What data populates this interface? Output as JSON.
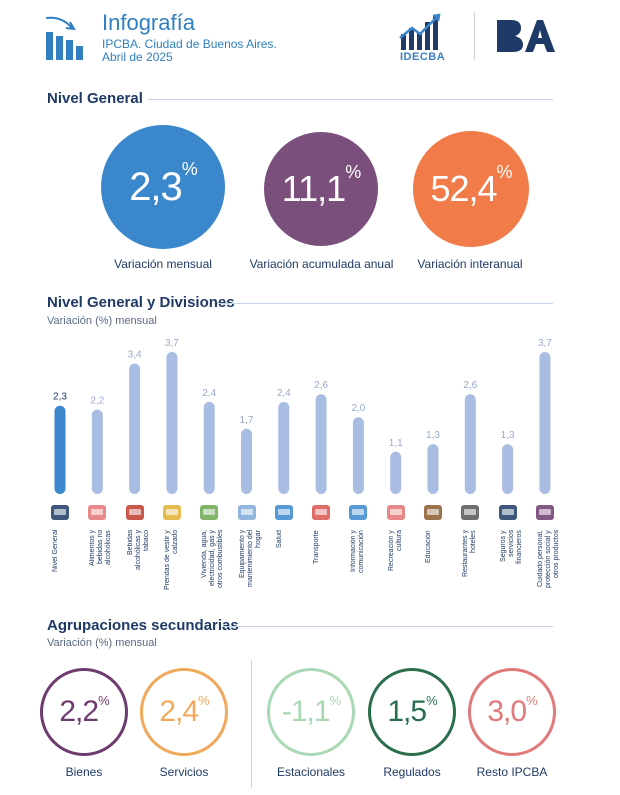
{
  "header": {
    "title": "Infografía",
    "subtitle_line1": "IPCBA. Ciudad de Buenos Aires.",
    "subtitle_line2": "Abril de 2025",
    "idec_label": "IDECBA"
  },
  "nivel_general": {
    "title": "Nivel General",
    "cards": [
      {
        "value": "2,3",
        "unit": "%",
        "label": "Variación mensual",
        "color": "#3a87cc"
      },
      {
        "value": "11,1",
        "unit": "%",
        "label": "Variación acumulada anual",
        "color": "#7a4f7c"
      },
      {
        "value": "52,4",
        "unit": "%",
        "label": "Variación interanual",
        "color": "#f27b4a"
      }
    ]
  },
  "divisiones": {
    "title": "Nivel General y Divisiones",
    "subtitle": "Variación (%) mensual"
  },
  "chart_data": {
    "type": "bar",
    "title": "Nivel General y Divisiones",
    "subtitle": "Variación (%) mensual",
    "categories": [
      "Nivel General",
      "Alimentos y bebidas no alcohólicas",
      "Bebidas alcohólicas y tabaco",
      "Prendas de vestir y calzado",
      "Vivienda, agua, electricidad, gas y otros combustibles",
      "Equipamiento y mantenimiento del hogar",
      "Salud",
      "Transporte",
      "Información y comunicación",
      "Recreación y cultura",
      "Educación",
      "Restaurantes y hoteles",
      "Seguros y servicios financieros",
      "Cuidado personal, protección social y otros productos"
    ],
    "values": [
      2.3,
      2.2,
      3.4,
      3.7,
      2.4,
      1.7,
      2.4,
      2.6,
      2.0,
      1.1,
      1.3,
      2.6,
      1.3,
      3.7
    ],
    "value_labels": [
      "2,3",
      "2,2",
      "3,4",
      "3,7",
      "2,4",
      "1,7",
      "2,4",
      "2,6",
      "2,0",
      "1,1",
      "1,3",
      "2,6",
      "1,3",
      "3,7"
    ],
    "highlight_color": "#3a87cc",
    "bar_color": "#a9bde3",
    "ylim": [
      0,
      3.7
    ],
    "grid": false,
    "icons": [
      "ba-logo-icon",
      "meat-vegetables-icon",
      "bottle-cigarette-icon",
      "shirt-icon",
      "house-icon",
      "washing-machine-icon",
      "doctor-icon",
      "car-plane-icon",
      "computer-icon",
      "games-icon",
      "school-icon",
      "cutlery-icon",
      "bank-icon",
      "personal-care-icon"
    ]
  },
  "agrupaciones": {
    "title": "Agrupaciones secundarias",
    "subtitle": "Variación (%) mensual",
    "items": [
      {
        "value": "2,2",
        "unit": "%",
        "label": "Bienes",
        "color": "#6e3b6e"
      },
      {
        "value": "2,4",
        "unit": "%",
        "label": "Servicios",
        "color": "#f2a85a"
      },
      {
        "value": "-1,1",
        "unit": "%",
        "label": "Estacionales",
        "color": "#a8d8b4"
      },
      {
        "value": "1,5",
        "unit": "%",
        "label": "Regulados",
        "color": "#2a6e4e"
      },
      {
        "value": "3,0",
        "unit": "%",
        "label": "Resto IPCBA",
        "color": "#e07a7a"
      }
    ]
  }
}
